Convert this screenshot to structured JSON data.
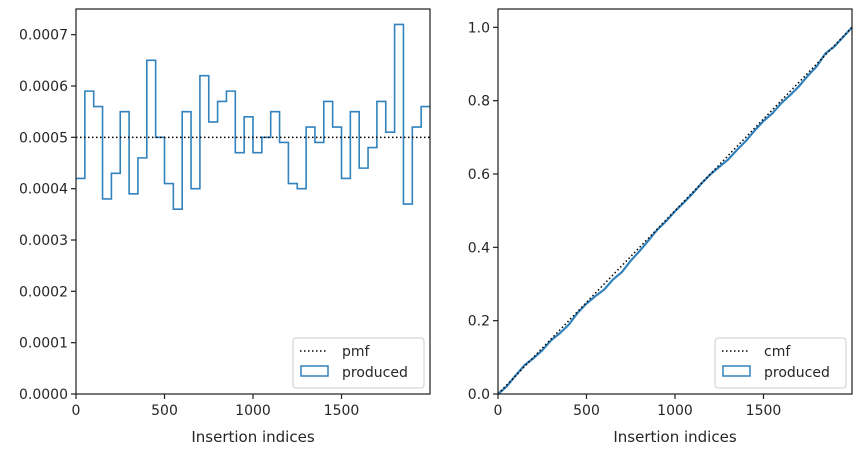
{
  "chart_data": [
    {
      "type": "histogram-step",
      "xlabel": "Insertion indices",
      "ylabel": "",
      "xlim": [
        0,
        2000
      ],
      "ylim": [
        0,
        0.00075
      ],
      "xticks": [
        0,
        500,
        1000,
        1500
      ],
      "xtick_labels": [
        "0",
        "500",
        "1000",
        "1500"
      ],
      "yticks": [
        0,
        0.0001,
        0.0002,
        0.0003,
        0.0004,
        0.0005,
        0.0006,
        0.0007
      ],
      "ytick_labels": [
        "0.0000",
        "0.0001",
        "0.0002",
        "0.0003",
        "0.0004",
        "0.0005",
        "0.0006",
        "0.0007"
      ],
      "bin_width": 50,
      "series": [
        {
          "name": "produced",
          "style": "step",
          "color": "#3182bd",
          "values": [
            0.00042,
            0.00059,
            0.00056,
            0.00038,
            0.00043,
            0.00055,
            0.00039,
            0.00046,
            0.00065,
            0.0005,
            0.00041,
            0.00036,
            0.00055,
            0.0004,
            0.00062,
            0.00053,
            0.00057,
            0.00059,
            0.00047,
            0.00054,
            0.00047,
            0.0005,
            0.00055,
            0.00049,
            0.00041,
            0.0004,
            0.00052,
            0.00049,
            0.00057,
            0.00052,
            0.00042,
            0.00055,
            0.00044,
            0.00048,
            0.00057,
            0.00051,
            0.00072,
            0.00037,
            0.00052,
            0.00056
          ]
        },
        {
          "name": "pmf",
          "style": "dotted",
          "color": "#000000",
          "values": [
            0.0005
          ]
        }
      ],
      "legend": {
        "placement": "lower right",
        "entries": [
          {
            "label": "pmf",
            "kind": "dotted-line",
            "color": "#000000"
          },
          {
            "label": "produced",
            "kind": "box",
            "color": "#3182bd"
          }
        ]
      }
    },
    {
      "type": "line",
      "xlabel": "Insertion indices",
      "ylabel": "",
      "xlim": [
        0,
        2000
      ],
      "ylim": [
        0,
        1.05
      ],
      "xticks": [
        0,
        500,
        1000,
        1500
      ],
      "xtick_labels": [
        "0",
        "500",
        "1000",
        "1500"
      ],
      "yticks": [
        0,
        0.2,
        0.4,
        0.6,
        0.8,
        1.0
      ],
      "ytick_labels": [
        "0.0",
        "0.2",
        "0.4",
        "0.6",
        "0.8",
        "1.0"
      ],
      "series": [
        {
          "name": "cmf",
          "style": "dotted",
          "color": "#000000",
          "x": [
            0,
            2000
          ],
          "values": [
            0,
            1.0
          ]
        },
        {
          "name": "produced",
          "style": "step",
          "color": "#3182bd",
          "x": [
            0,
            50,
            100,
            150,
            200,
            250,
            300,
            350,
            400,
            450,
            500,
            550,
            600,
            650,
            700,
            750,
            800,
            850,
            900,
            950,
            1000,
            1050,
            1100,
            1150,
            1200,
            1250,
            1300,
            1350,
            1400,
            1450,
            1500,
            1550,
            1600,
            1650,
            1700,
            1750,
            1800,
            1850,
            1900,
            1950,
            2000
          ],
          "values": [
            0,
            0.021,
            0.0505,
            0.0785,
            0.0975,
            0.119,
            0.1465,
            0.166,
            0.189,
            0.2215,
            0.2465,
            0.267,
            0.285,
            0.3125,
            0.3325,
            0.3635,
            0.39,
            0.4185,
            0.448,
            0.4715,
            0.4985,
            0.522,
            0.547,
            0.5745,
            0.599,
            0.6195,
            0.6395,
            0.6655,
            0.69,
            0.7185,
            0.7445,
            0.7655,
            0.793,
            0.815,
            0.839,
            0.8675,
            0.893,
            0.929,
            0.9475,
            0.9735,
            1.0
          ]
        }
      ],
      "legend": {
        "placement": "lower right",
        "entries": [
          {
            "label": "cmf",
            "kind": "dotted-line",
            "color": "#000000"
          },
          {
            "label": "produced",
            "kind": "box",
            "color": "#3182bd"
          }
        ]
      }
    }
  ]
}
